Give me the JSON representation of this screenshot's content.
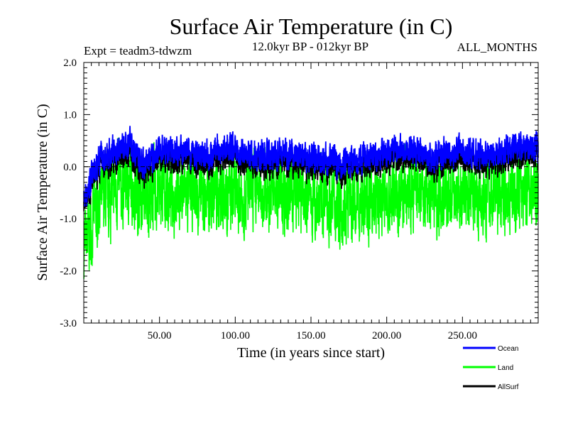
{
  "chart_data": {
    "type": "line",
    "title": "Surface Air Temperature (in C)",
    "experiment_label": "Expt = teadm3-tdwzm",
    "period_label": "12.0kyr BP - 012kyr BP",
    "season_label": "ALL_MONTHS",
    "xlabel": "Time (in years since start)",
    "ylabel": "Surface Air Temperature (in C)",
    "xlim": [
      0,
      300
    ],
    "ylim": [
      -3.0,
      2.0
    ],
    "x_ticks": [
      50,
      100,
      150,
      200,
      250
    ],
    "x_tick_labels": [
      "50.00",
      "100.00",
      "150.00",
      "200.00",
      "250.00"
    ],
    "y_ticks": [
      2.0,
      1.0,
      0.0,
      -1.0,
      -2.0,
      -3.0
    ],
    "y_tick_labels": [
      "2.0",
      "1.0",
      "0.0",
      "-1.0",
      "-2.0",
      "-3.0"
    ],
    "reference_line": 0.0,
    "x": [
      0,
      10,
      20,
      30,
      40,
      50,
      60,
      70,
      80,
      90,
      100,
      110,
      120,
      130,
      140,
      150,
      160,
      170,
      180,
      190,
      200,
      210,
      220,
      230,
      240,
      250,
      260,
      270,
      280,
      290,
      300
    ],
    "series": [
      {
        "name": "Ocean",
        "color": "#0000ff",
        "values": [
          -0.65,
          0.15,
          0.3,
          0.45,
          0.05,
          0.3,
          0.3,
          0.25,
          0.2,
          0.35,
          0.3,
          0.25,
          0.2,
          0.3,
          0.2,
          0.15,
          0.15,
          0.05,
          0.1,
          0.2,
          0.3,
          0.35,
          0.25,
          0.2,
          0.25,
          0.3,
          0.25,
          0.2,
          0.35,
          0.4,
          0.4
        ]
      },
      {
        "name": "Land",
        "color": "#00ff00",
        "values": [
          -1.6,
          -0.7,
          -0.5,
          -0.3,
          -0.6,
          -0.5,
          -0.5,
          -0.5,
          -0.6,
          -0.5,
          -0.55,
          -0.5,
          -0.5,
          -0.55,
          -0.5,
          -0.6,
          -0.65,
          -0.7,
          -0.7,
          -0.65,
          -0.6,
          -0.55,
          -0.5,
          -0.55,
          -0.6,
          -0.5,
          -0.5,
          -0.5,
          -0.45,
          -0.4,
          -0.4
        ]
      },
      {
        "name": "AllSurf",
        "color": "#000000",
        "values": [
          -0.75,
          0.05,
          0.15,
          0.3,
          -0.1,
          0.15,
          0.15,
          0.1,
          0.05,
          0.2,
          0.15,
          0.1,
          0.05,
          0.15,
          0.05,
          0.0,
          0.0,
          -0.1,
          -0.05,
          0.05,
          0.15,
          0.2,
          0.1,
          0.05,
          0.1,
          0.15,
          0.1,
          0.05,
          0.2,
          0.25,
          0.25
        ]
      }
    ],
    "legend_placement": "bottom-right, below plot"
  }
}
